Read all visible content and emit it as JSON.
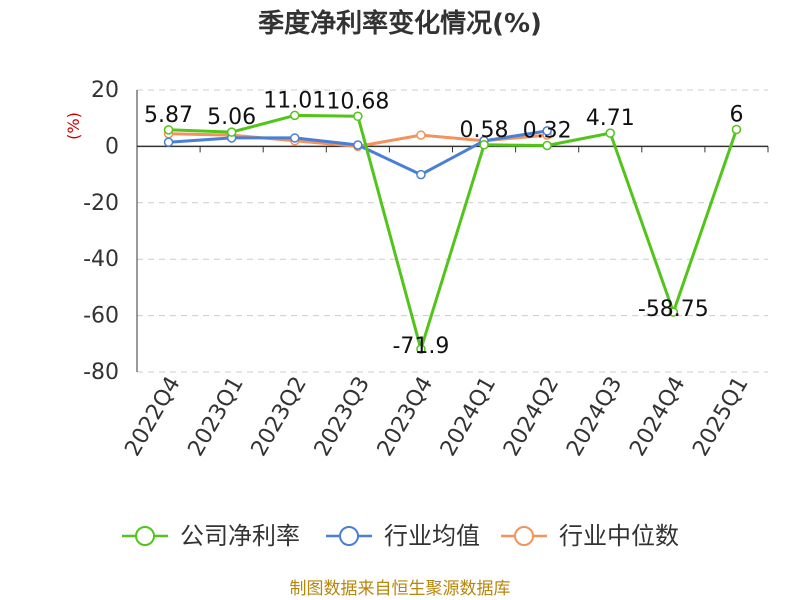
{
  "chart_data": {
    "type": "line",
    "title": "季度净利率变化情况(%)",
    "ylabel": "(%)",
    "ylim": [
      -80,
      20
    ],
    "yticks": [
      20,
      0,
      -20,
      -40,
      -60,
      -80
    ],
    "grid": true,
    "legend_position": "bottom",
    "categories": [
      "2022Q4",
      "2023Q1",
      "2023Q2",
      "2023Q3",
      "2023Q4",
      "2024Q1",
      "2024Q2",
      "2024Q3",
      "2024Q4",
      "2025Q1"
    ],
    "series": [
      {
        "name": "公司净利率",
        "color": "#52c41a",
        "values": [
          5.87,
          5.06,
          11.01,
          10.68,
          -71.9,
          0.58,
          0.32,
          4.71,
          -58.75,
          6
        ],
        "labels": [
          "5.87",
          "5.06",
          "11.01",
          "10.68",
          "-71.9",
          "0.58",
          "0.32",
          "4.71",
          "-58.75",
          "6"
        ]
      },
      {
        "name": "行业均值",
        "color": "#4a7fd6",
        "values": [
          1.5,
          3.0,
          3.0,
          0.5,
          -10.0,
          2.0,
          5.5,
          null,
          null,
          null
        ]
      },
      {
        "name": "行业中位数",
        "color": "#f4925b",
        "values": [
          4.5,
          4.0,
          2.0,
          0.0,
          4.0,
          2.0,
          4.0,
          null,
          null,
          null
        ]
      }
    ]
  },
  "source_text": "制图数据来自恒生聚源数据库"
}
